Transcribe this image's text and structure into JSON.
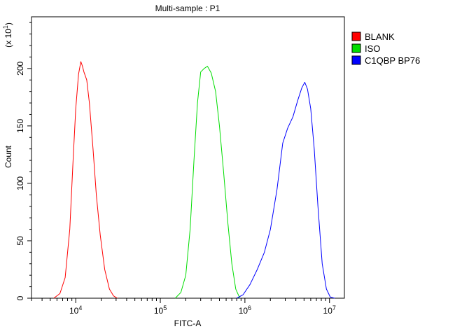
{
  "chart_data": {
    "type": "line",
    "title": "Multi-sample : P1",
    "xlabel": "FITC-A",
    "ylabel": "Count",
    "y_multiplier_label": "(x 10",
    "y_multiplier_exp": "1",
    "x_scale": "log",
    "xlim": [
      3000,
      15000000
    ],
    "ylim": [
      0,
      245
    ],
    "x_ticks": [
      {
        "value": 10000,
        "base": "10",
        "exp": "4"
      },
      {
        "value": 100000,
        "base": "10",
        "exp": "5"
      },
      {
        "value": 1000000,
        "base": "10",
        "exp": "6"
      },
      {
        "value": 10000000,
        "base": "10",
        "exp": "7"
      }
    ],
    "y_ticks": [
      0,
      50,
      100,
      150,
      200
    ],
    "y_tick_labels": [
      "0",
      "50",
      "100",
      "150",
      "200"
    ],
    "grid": false,
    "legend": "top-right",
    "series": [
      {
        "name": "BLANK",
        "color": "#ff0000",
        "x": [
          5500,
          6500,
          7500,
          8500,
          9300,
          10000,
          10800,
          11500,
          12000,
          12500,
          13500,
          14500,
          16000,
          17500,
          19500,
          22000,
          25000,
          28000,
          31000
        ],
        "y": [
          0,
          4,
          18,
          60,
          120,
          165,
          195,
          206,
          202,
          197,
          190,
          170,
          130,
          90,
          55,
          25,
          8,
          2,
          0
        ]
      },
      {
        "name": "ISO",
        "color": "#00dd00",
        "x": [
          150000,
          175000,
          200000,
          225000,
          250000,
          275000,
          300000,
          330000,
          360000,
          400000,
          450000,
          500000,
          560000,
          630000,
          700000,
          780000,
          870000
        ],
        "y": [
          0,
          5,
          20,
          60,
          120,
          170,
          197,
          200,
          202,
          196,
          180,
          150,
          110,
          65,
          30,
          8,
          0
        ]
      },
      {
        "name": "C1QBP BP76",
        "color": "#0000ff",
        "x": [
          800000,
          950000,
          1150000,
          1400000,
          1700000,
          2000000,
          2400000,
          2800000,
          3200000,
          3700000,
          4200000,
          4700000,
          5100000,
          5500000,
          6000000,
          6600000,
          7300000,
          8200000,
          9200000,
          10200000,
          11500000
        ],
        "y": [
          0,
          3,
          12,
          25,
          40,
          60,
          95,
          135,
          148,
          158,
          172,
          183,
          188,
          182,
          165,
          130,
          80,
          30,
          8,
          1,
          0
        ]
      }
    ]
  }
}
